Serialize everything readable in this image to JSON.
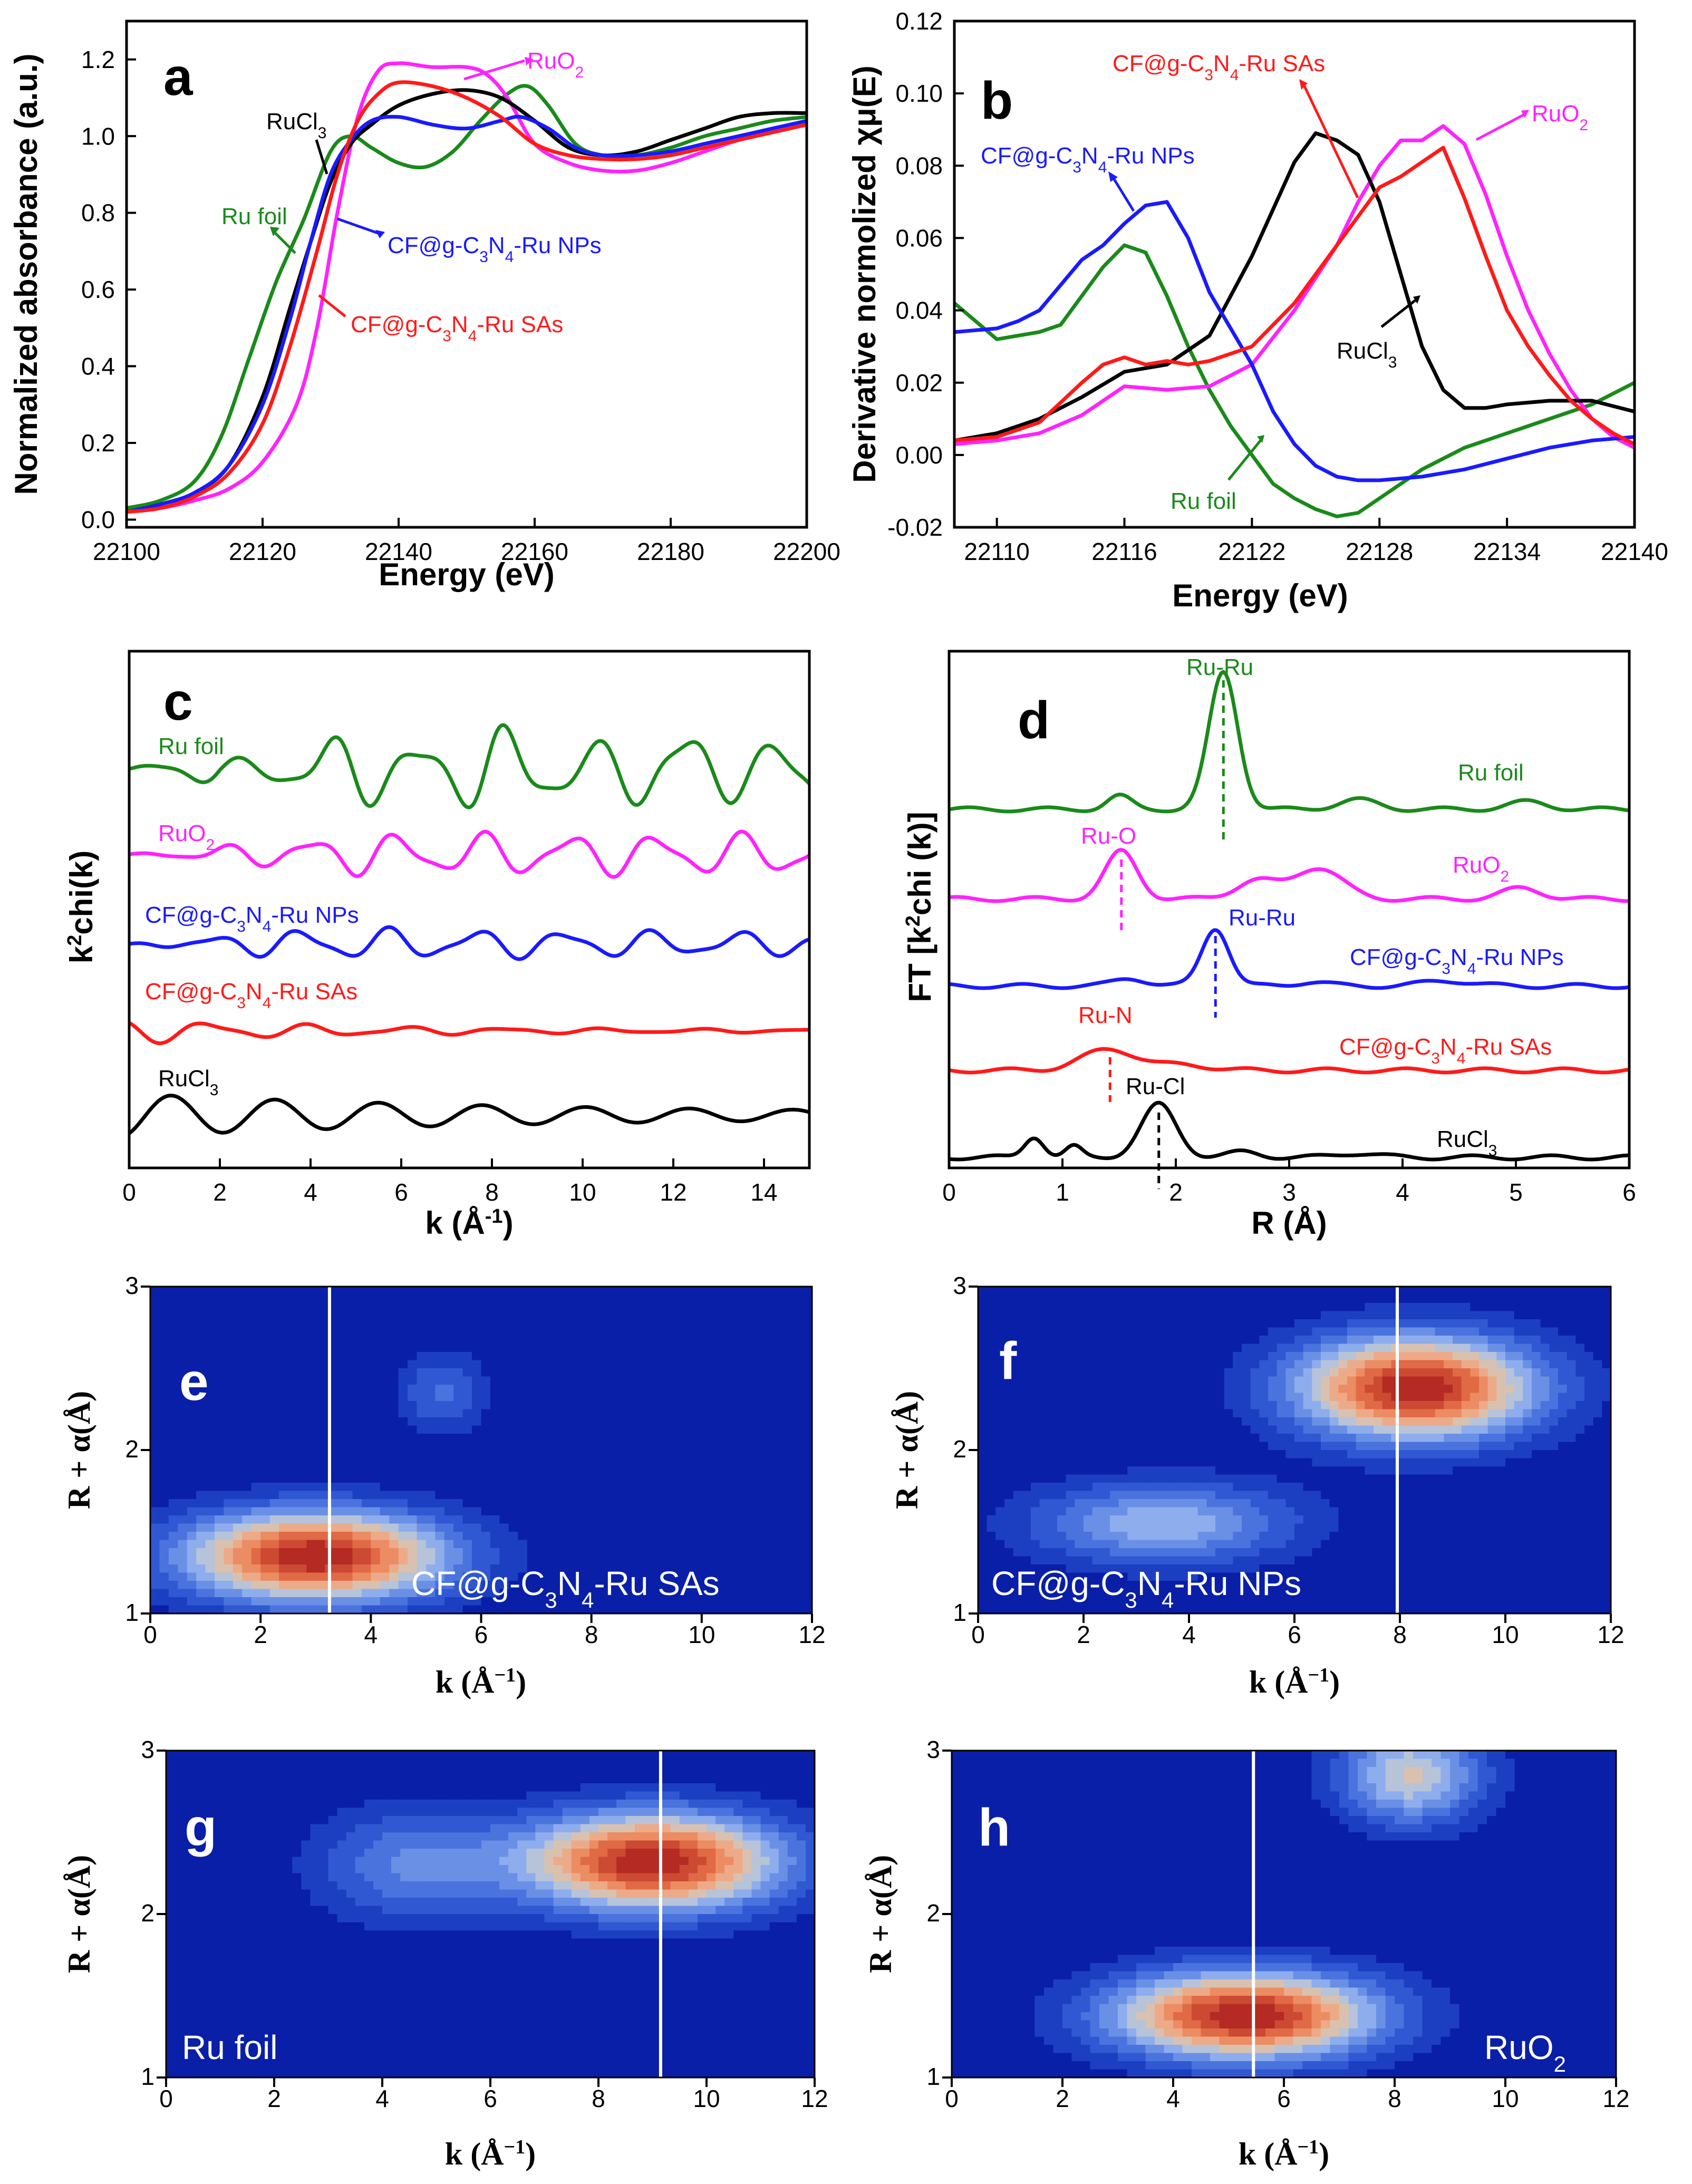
{
  "chart_data": [
    {
      "panel": "a",
      "type": "line",
      "xlabel": "Energy (eV)",
      "ylabel": "Normalized absorbance (a.u.)",
      "xlim": [
        22100,
        22200
      ],
      "ylim": [
        -0.02,
        1.3
      ],
      "xticks": [
        22100,
        22120,
        22140,
        22160,
        22180,
        22200
      ],
      "yticks": [
        0.0,
        0.2,
        0.4,
        0.6,
        0.8,
        1.0,
        1.2
      ],
      "series": [
        {
          "name": "Ru foil",
          "color": "#1a8a1a",
          "x": [
            22100,
            22105,
            22110,
            22114,
            22118,
            22122,
            22126,
            22130,
            22133,
            22136,
            22140,
            22144,
            22148,
            22152,
            22156,
            22159,
            22162,
            22166,
            22170,
            22175,
            22180,
            22185,
            22190,
            22195,
            22200
          ],
          "y": [
            0.03,
            0.05,
            0.1,
            0.22,
            0.42,
            0.62,
            0.78,
            0.96,
            1.0,
            0.97,
            0.93,
            0.92,
            0.96,
            1.04,
            1.11,
            1.13,
            1.08,
            0.98,
            0.95,
            0.95,
            0.97,
            1.0,
            1.02,
            1.04,
            1.05
          ]
        },
        {
          "name": "RuO2",
          "color": "#ff22ff",
          "x": [
            22100,
            22105,
            22110,
            22115,
            22120,
            22125,
            22128,
            22131,
            22134,
            22137,
            22140,
            22145,
            22150,
            22153,
            22156,
            22160,
            22165,
            22170,
            22175,
            22180,
            22185,
            22190,
            22195,
            22200
          ],
          "y": [
            0.02,
            0.03,
            0.05,
            0.08,
            0.15,
            0.3,
            0.5,
            0.8,
            1.05,
            1.17,
            1.19,
            1.18,
            1.18,
            1.16,
            1.1,
            0.98,
            0.93,
            0.91,
            0.91,
            0.93,
            0.96,
            0.99,
            1.01,
            1.03
          ]
        },
        {
          "name": "RuCl3",
          "color": "#000000",
          "x": [
            22100,
            22105,
            22110,
            22115,
            22120,
            22124,
            22127,
            22130,
            22133,
            22136,
            22140,
            22145,
            22150,
            22155,
            22160,
            22165,
            22170,
            22175,
            22180,
            22185,
            22190,
            22195,
            22200
          ],
          "y": [
            0.02,
            0.04,
            0.07,
            0.14,
            0.32,
            0.55,
            0.72,
            0.88,
            0.98,
            1.03,
            1.08,
            1.11,
            1.12,
            1.1,
            1.04,
            0.97,
            0.95,
            0.96,
            0.99,
            1.02,
            1.05,
            1.06,
            1.06
          ]
        },
        {
          "name": "CF@g-C3N4-Ru NPs",
          "color": "#1a1aff",
          "x": [
            22100,
            22105,
            22110,
            22115,
            22120,
            22124,
            22127,
            22130,
            22133,
            22136,
            22140,
            22145,
            22150,
            22155,
            22158,
            22162,
            22166,
            22170,
            22175,
            22180,
            22185,
            22190,
            22195,
            22200
          ],
          "y": [
            0.02,
            0.04,
            0.07,
            0.14,
            0.3,
            0.52,
            0.72,
            0.9,
            0.99,
            1.04,
            1.05,
            1.03,
            1.02,
            1.04,
            1.05,
            1.02,
            0.97,
            0.95,
            0.95,
            0.96,
            0.98,
            1.0,
            1.02,
            1.04
          ]
        },
        {
          "name": "CF@g-C3N4-Ru SAs",
          "color": "#ff1a1a",
          "x": [
            22100,
            22105,
            22110,
            22115,
            22120,
            22124,
            22128,
            22131,
            22134,
            22137,
            22140,
            22145,
            22150,
            22155,
            22160,
            22165,
            22170,
            22175,
            22180,
            22185,
            22190,
            22195,
            22200
          ],
          "y": [
            0.02,
            0.03,
            0.06,
            0.12,
            0.25,
            0.45,
            0.7,
            0.9,
            1.04,
            1.11,
            1.14,
            1.13,
            1.1,
            1.05,
            0.98,
            0.95,
            0.94,
            0.94,
            0.95,
            0.97,
            0.99,
            1.01,
            1.03
          ]
        }
      ],
      "annotations": [
        "RuO2",
        "RuCl3",
        "Ru foil",
        "CF@g-C3N4-Ru NPs",
        "CF@g-C3N4-Ru SAs"
      ]
    },
    {
      "panel": "b",
      "type": "line",
      "xlabel": "Energy (eV)",
      "ylabel": "Derivative normolized χμ(E)",
      "xlim": [
        22108,
        22140
      ],
      "ylim": [
        -0.02,
        0.12
      ],
      "xticks": [
        22110,
        22116,
        22122,
        22128,
        22134,
        22140
      ],
      "yticks": [
        -0.02,
        0.0,
        0.02,
        0.04,
        0.06,
        0.08,
        0.1,
        0.12
      ],
      "series": [
        {
          "name": "Ru foil",
          "color": "#1a8a1a",
          "x": [
            22108,
            22109,
            22110,
            22112,
            22113,
            22114,
            22115,
            22116,
            22117,
            22118,
            22119,
            22120,
            22121,
            22122,
            22123,
            22124,
            22125,
            22126,
            22127,
            22128,
            22130,
            22132,
            22134,
            22136,
            22138,
            22140
          ],
          "y": [
            0.042,
            0.037,
            0.032,
            0.034,
            0.036,
            0.044,
            0.052,
            0.058,
            0.056,
            0.044,
            0.03,
            0.018,
            0.008,
            0.0,
            -0.008,
            -0.012,
            -0.015,
            -0.017,
            -0.016,
            -0.012,
            -0.004,
            0.002,
            0.006,
            0.01,
            0.014,
            0.02
          ]
        },
        {
          "name": "RuO2",
          "color": "#ff22ff",
          "x": [
            22108,
            22110,
            22112,
            22114,
            22116,
            22118,
            22120,
            22122,
            22124,
            22126,
            22127,
            22128,
            22129,
            22130,
            22131,
            22132,
            22133,
            22134,
            22135,
            22136,
            22137,
            22138,
            22139,
            22140
          ],
          "y": [
            0.003,
            0.004,
            0.006,
            0.011,
            0.019,
            0.018,
            0.019,
            0.025,
            0.04,
            0.058,
            0.07,
            0.08,
            0.087,
            0.087,
            0.091,
            0.086,
            0.072,
            0.055,
            0.04,
            0.028,
            0.018,
            0.01,
            0.005,
            0.002
          ]
        },
        {
          "name": "RuCl3",
          "color": "#000000",
          "x": [
            22108,
            22110,
            22112,
            22114,
            22116,
            22118,
            22120,
            22122,
            22123,
            22124,
            22125,
            22126,
            22127,
            22128,
            22129,
            22130,
            22131,
            22132,
            22133,
            22134,
            22136,
            22138,
            22140
          ],
          "y": [
            0.004,
            0.006,
            0.01,
            0.016,
            0.023,
            0.025,
            0.033,
            0.055,
            0.068,
            0.081,
            0.089,
            0.087,
            0.083,
            0.07,
            0.05,
            0.03,
            0.018,
            0.013,
            0.013,
            0.014,
            0.015,
            0.015,
            0.012
          ]
        },
        {
          "name": "CF@g-C3N4-Ru NPs",
          "color": "#1a1aff",
          "x": [
            22108,
            22110,
            22111,
            22112,
            22113,
            22114,
            22115,
            22116,
            22117,
            22118,
            22119,
            22120,
            22121,
            22122,
            22123,
            22124,
            22125,
            22126,
            22127,
            22128,
            22130,
            22132,
            22134,
            22136,
            22138,
            22140
          ],
          "y": [
            0.034,
            0.035,
            0.037,
            0.04,
            0.047,
            0.054,
            0.058,
            0.064,
            0.069,
            0.07,
            0.06,
            0.045,
            0.035,
            0.025,
            0.012,
            0.003,
            -0.003,
            -0.006,
            -0.007,
            -0.007,
            -0.006,
            -0.004,
            -0.001,
            0.002,
            0.004,
            0.005
          ]
        },
        {
          "name": "CF@g-C3N4-Ru SAs",
          "color": "#ff1a1a",
          "x": [
            22108,
            22110,
            22112,
            22114,
            22115,
            22116,
            22117,
            22118,
            22119,
            22120,
            22122,
            22124,
            22126,
            22127,
            22128,
            22129,
            22130,
            22131,
            22132,
            22133,
            22134,
            22135,
            22136,
            22137,
            22138,
            22139,
            22140
          ],
          "y": [
            0.004,
            0.005,
            0.009,
            0.02,
            0.025,
            0.027,
            0.025,
            0.026,
            0.025,
            0.026,
            0.03,
            0.042,
            0.058,
            0.066,
            0.074,
            0.077,
            0.081,
            0.085,
            0.071,
            0.055,
            0.04,
            0.03,
            0.022,
            0.015,
            0.01,
            0.006,
            0.003
          ]
        }
      ],
      "annotations": [
        "CF@g-C3N4-Ru SAs",
        "RuO2",
        "CF@g-C3N4-Ru NPs",
        "RuCl3",
        "Ru foil"
      ]
    },
    {
      "panel": "c",
      "type": "line",
      "xlabel": "k (Å-1)",
      "ylabel": "k2chi(k)",
      "xlim": [
        0,
        15
      ],
      "xticks": [
        0,
        2,
        4,
        6,
        8,
        10,
        12,
        14
      ],
      "series": [
        {
          "name": "Ru foil",
          "color": "#1a8a1a"
        },
        {
          "name": "RuO2",
          "color": "#ff22ff"
        },
        {
          "name": "CF@g-C3N4-Ru NPs",
          "color": "#1a1aff"
        },
        {
          "name": "CF@g-C3N4-Ru SAs",
          "color": "#ff1a1a"
        },
        {
          "name": "RuCl3",
          "color": "#000000"
        }
      ]
    },
    {
      "panel": "d",
      "type": "line",
      "xlabel": "R (Å)",
      "ylabel": "FT [k2chi (k)]",
      "xlim": [
        0,
        6
      ],
      "xticks": [
        0,
        1,
        2,
        3,
        4,
        5,
        6
      ],
      "series": [
        {
          "name": "Ru foil",
          "color": "#1a8a1a",
          "peak_R": 2.42,
          "peak_label": "Ru-Ru"
        },
        {
          "name": "RuO2",
          "color": "#ff22ff",
          "peak_R": 1.52,
          "peak_label": "Ru-O"
        },
        {
          "name": "CF@g-C3N4-Ru NPs",
          "color": "#1a1aff",
          "peak_R": 2.35,
          "peak_label": "Ru-Ru"
        },
        {
          "name": "CF@g-C3N4-Ru SAs",
          "color": "#ff1a1a",
          "peak_R": 1.42,
          "peak_label": "Ru-N"
        },
        {
          "name": "RuCl3",
          "color": "#000000",
          "peak_R": 1.85,
          "peak_label": "Ru-Cl"
        }
      ]
    },
    {
      "panel": "e",
      "type": "heatmap",
      "sample": "CF@g-C3N4-Ru SAs",
      "xlabel": "k (Å-1)",
      "ylabel": "R + α(Å)",
      "xlim": [
        0,
        12
      ],
      "ylim": [
        1,
        3
      ],
      "xticks": [
        0,
        2,
        4,
        6,
        8,
        10,
        12
      ],
      "yticks": [
        1,
        2,
        3
      ],
      "max_at": [
        3.0,
        1.35
      ],
      "marker_k": 3.25
    },
    {
      "panel": "f",
      "type": "heatmap",
      "sample": "CF@g-C3N4-Ru NPs",
      "xlabel": "k (Å-1)",
      "ylabel": "R + α(Å)",
      "xlim": [
        0,
        12
      ],
      "ylim": [
        1,
        3
      ],
      "xticks": [
        0,
        2,
        4,
        6,
        8,
        10,
        12
      ],
      "yticks": [
        1,
        2,
        3
      ],
      "max_at": [
        8.3,
        2.38
      ],
      "marker_k": 7.95
    },
    {
      "panel": "g",
      "type": "heatmap",
      "sample": "Ru foil",
      "xlabel": "k (Å-1)",
      "ylabel": "R + α(Å)",
      "xlim": [
        0,
        12
      ],
      "ylim": [
        1,
        3
      ],
      "xticks": [
        0,
        2,
        4,
        6,
        8,
        10,
        12
      ],
      "yticks": [
        1,
        2,
        3
      ],
      "max_at": [
        9.0,
        2.32
      ],
      "marker_k": 9.15
    },
    {
      "panel": "h",
      "type": "heatmap",
      "sample": "RuO2",
      "xlabel": "k (Å-1)",
      "ylabel": "R + α(Å)",
      "xlim": [
        0,
        12
      ],
      "ylim": [
        1,
        3
      ],
      "xticks": [
        0,
        2,
        4,
        6,
        8,
        10,
        12
      ],
      "yticks": [
        1,
        2,
        3
      ],
      "max_at": [
        5.3,
        1.38
      ],
      "marker_k": 5.45
    }
  ],
  "panel_letters": [
    "a",
    "b",
    "c",
    "d",
    "e",
    "f",
    "g",
    "h"
  ],
  "text": {
    "ru_foil": "Ru foil",
    "ruo2": "RuO",
    "rucl3": "RuCl",
    "cf_prefix": "CF@g-C",
    "n_sub": "N",
    "ru_nps": "-Ru NPs",
    "ru_sas": "-Ru SAs",
    "sub2": "2",
    "sub3": "3",
    "sub4": "4",
    "ru_ru": "Ru-Ru",
    "ru_o": "Ru-O",
    "ru_n": "Ru-N",
    "ru_cl": "Ru-Cl"
  }
}
